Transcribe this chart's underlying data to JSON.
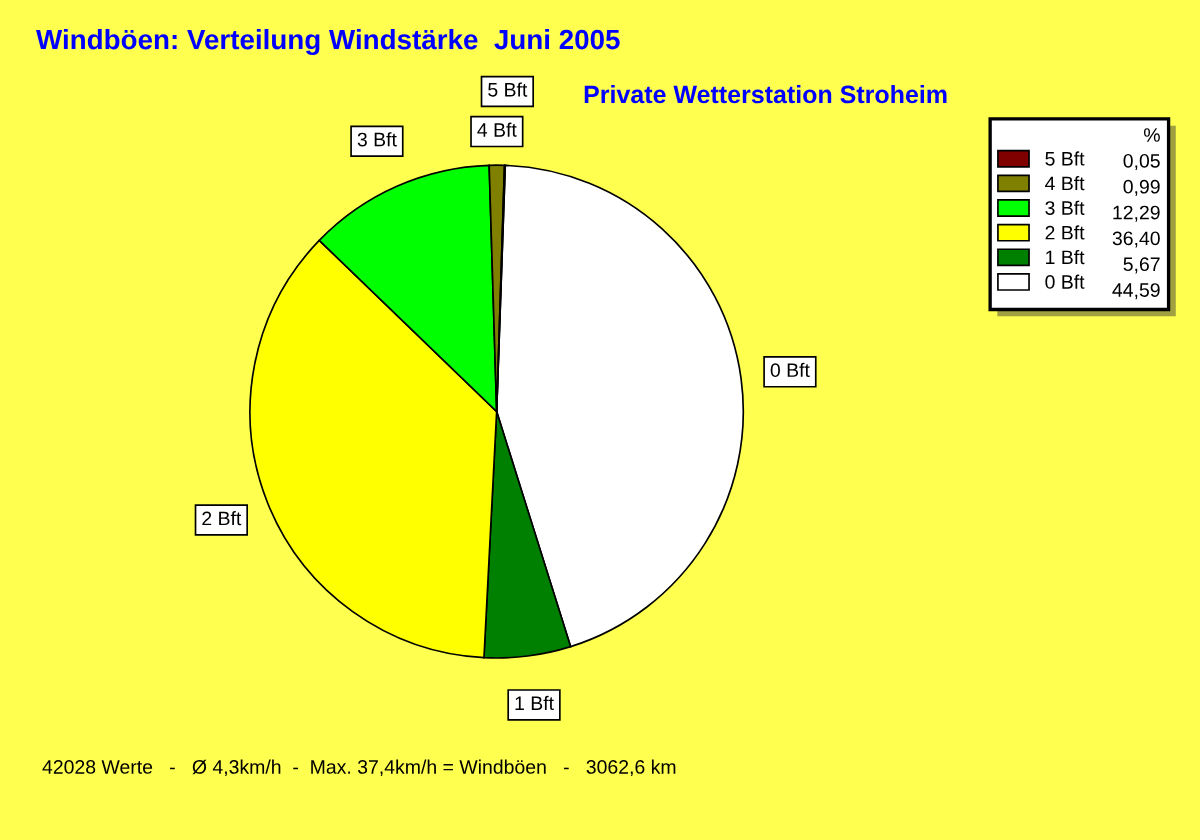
{
  "chart_data": {
    "type": "pie",
    "title": "Windböen: Verteilung Windstärke  Juni 2005",
    "subtitle": "Private Wetterstation Stroheim",
    "legend_title": "%",
    "legend": "top right",
    "categories": [
      "5 Bft",
      "4 Bft",
      "3 Bft",
      "2 Bft",
      "1 Bft",
      "0 Bft"
    ],
    "values": [
      0.05,
      0.99,
      12.29,
      36.4,
      5.67,
      44.59
    ],
    "value_labels": [
      "0,05",
      "0,99",
      "12,29",
      "36,40",
      "5,67",
      "44,59"
    ],
    "colors": [
      "#800000",
      "#808000",
      "#00ff00",
      "#ffff00",
      "#008000",
      "#ffffff"
    ],
    "annotations": [
      "42028 Werte   -   Ø 4,3km/h  -  Max. 37,4km/h = Windböen   -   3062,6 km"
    ]
  }
}
